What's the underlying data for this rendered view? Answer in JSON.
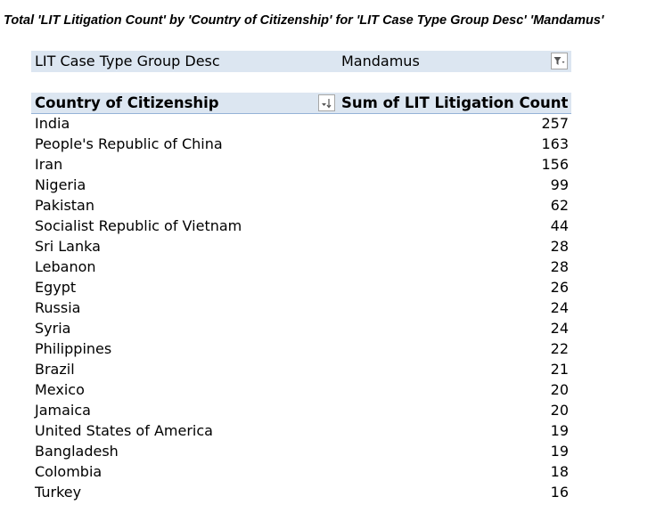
{
  "title": "Total 'LIT Litigation Count' by 'Country of Citizenship' for 'LIT Case Type Group Desc' 'Mandamus'",
  "filter": {
    "label": "LIT Case Type Group Desc",
    "value": "Mandamus",
    "icon": "filter-dropdown-icon"
  },
  "table": {
    "headers": {
      "country": "Country of Citizenship",
      "sum": "Sum of LIT Litigation Count",
      "sort_icon": "sort-descending-icon"
    },
    "rows": [
      {
        "country": "India",
        "count": "257"
      },
      {
        "country": "People's Republic of China",
        "count": "163"
      },
      {
        "country": "Iran",
        "count": "156"
      },
      {
        "country": "Nigeria",
        "count": "99"
      },
      {
        "country": "Pakistan",
        "count": "62"
      },
      {
        "country": "Socialist Republic of Vietnam",
        "count": "44"
      },
      {
        "country": "Sri Lanka",
        "count": "28"
      },
      {
        "country": "Lebanon",
        "count": "28"
      },
      {
        "country": "Egypt",
        "count": "26"
      },
      {
        "country": "Russia",
        "count": "24"
      },
      {
        "country": "Syria",
        "count": "24"
      },
      {
        "country": "Philippines",
        "count": "22"
      },
      {
        "country": "Brazil",
        "count": "21"
      },
      {
        "country": "Mexico",
        "count": "20"
      },
      {
        "country": "Jamaica",
        "count": "20"
      },
      {
        "country": "United States of America",
        "count": "19"
      },
      {
        "country": "Bangladesh",
        "count": "19"
      },
      {
        "country": "Colombia",
        "count": "18"
      },
      {
        "country": "Turkey",
        "count": "16"
      }
    ]
  },
  "colors": {
    "header_fill": "#dce6f1",
    "header_border": "#95b3d7",
    "text": "#000000"
  }
}
